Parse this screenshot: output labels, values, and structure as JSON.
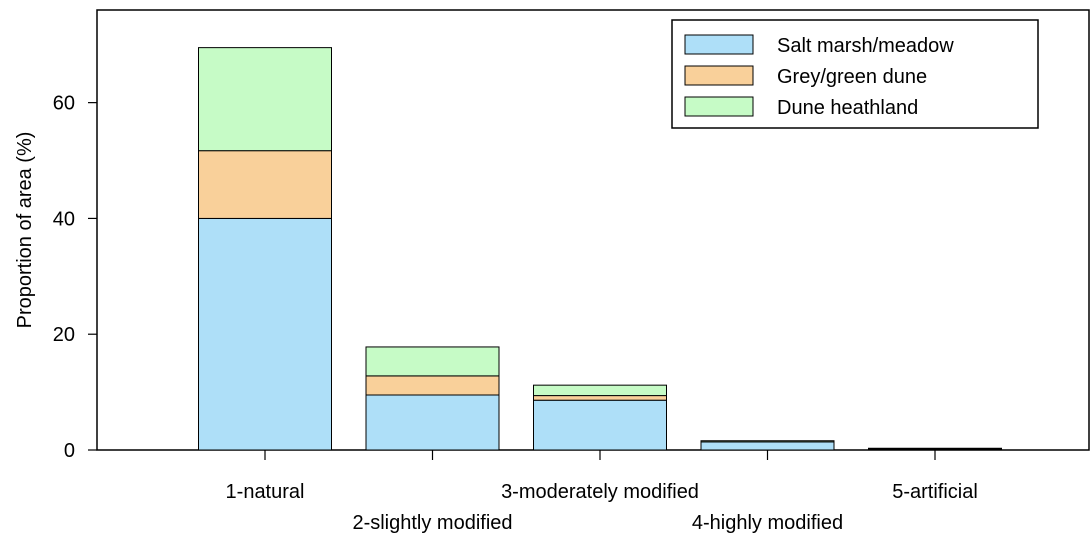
{
  "chart_data": {
    "type": "bar",
    "stacked": true,
    "categories": [
      "1-natural",
      "2-slightly modified",
      "3-moderately modified",
      "4-highly modified",
      "5-artificial"
    ],
    "series": [
      {
        "name": "Salt marsh/meadow",
        "color": "#aedff8",
        "values": [
          40.0,
          9.5,
          8.6,
          1.4,
          0.2
        ]
      },
      {
        "name": "Grey/green dune",
        "color": "#f9d09a",
        "values": [
          11.7,
          3.3,
          0.8,
          0.0,
          0.0
        ]
      },
      {
        "name": "Dune heathland",
        "color": "#c6fbc6",
        "values": [
          17.8,
          5.0,
          1.8,
          0.2,
          0.1
        ]
      }
    ],
    "title": "",
    "xlabel": "",
    "ylabel": "Proportion of area (%)",
    "ylim": [
      0,
      76
    ],
    "yticks": [
      0,
      20,
      40,
      60
    ],
    "grid": false,
    "legend_position": "top-right"
  }
}
